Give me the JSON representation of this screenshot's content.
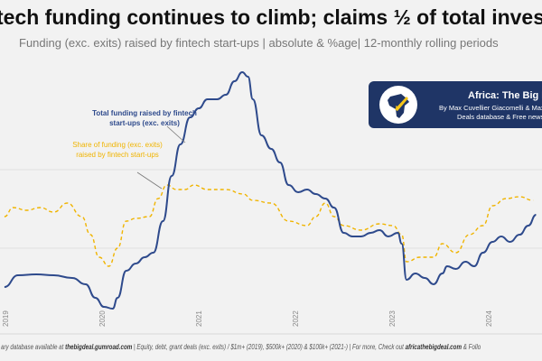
{
  "title": "tech funding continues to climb; claims ½ of total inves",
  "subtitle": "Funding (exc. exits) raised by fintech start-ups | absolute & %age| 12-monthly rolling periods",
  "brand": {
    "title": "Africa: The Big Dea",
    "byline": "By Max Cuvellier Giacomelli & Max",
    "tagline": "Deals database & Free news"
  },
  "footer": {
    "part1": "ary database available at ",
    "link1": "thebigdeal.gumroad.com",
    "part2": " | Equity, debt, grant deals (exc. exits) / $1m+ (2019), $500k+ (2020) & $100k+ (2021-) | For more, Check out ",
    "link2": "africathebigdeal.com",
    "part3": " & Follo"
  },
  "chart_data": {
    "type": "line",
    "title": "tech funding continues to climb; claims ½ of total inves",
    "xlabel": "",
    "ylabel": "",
    "x_ticks": [
      "2019",
      "2020",
      "2021",
      "2022",
      "2023",
      "2024"
    ],
    "grid": "faint horizontal",
    "colors": {
      "total": "#2e4a8c",
      "share": "#f0b400",
      "background": "#f2f2f2",
      "brand": "#1f3566"
    },
    "series": [
      {
        "name": "Total funding raised by fintech start-ups (exc. exits)",
        "style": "solid",
        "x": [
          2018.99,
          2019.13,
          2019.32,
          2019.5,
          2019.69,
          2019.83,
          2019.93,
          2020.02,
          2020.11,
          2020.16,
          2020.25,
          2020.35,
          2020.44,
          2020.53,
          2020.63,
          2020.72,
          2020.81,
          2020.91,
          2021.0,
          2021.09,
          2021.19,
          2021.28,
          2021.37,
          2021.45,
          2021.51,
          2021.56,
          2021.65,
          2021.75,
          2021.84,
          2021.93,
          2022.03,
          2022.12,
          2022.21,
          2022.31,
          2022.4,
          2022.5,
          2022.59,
          2022.68,
          2022.78,
          2022.87,
          2022.96,
          2023.06,
          2023.1,
          2023.15,
          2023.24,
          2023.34,
          2023.43,
          2023.52,
          2023.57,
          2023.66,
          2023.76,
          2023.85,
          2023.94,
          2024.04,
          2024.13,
          2024.22,
          2024.32,
          2024.41,
          2024.49
        ],
        "values": [
          32,
          45,
          46,
          45,
          42,
          35,
          20,
          10,
          8,
          20,
          50,
          58,
          65,
          70,
          105,
          155,
          190,
          220,
          230,
          240,
          240,
          245,
          260,
          270,
          265,
          240,
          200,
          185,
          170,
          145,
          137,
          140,
          135,
          130,
          120,
          92,
          88,
          88,
          92,
          95,
          88,
          92,
          80,
          40,
          47,
          42,
          35,
          47,
          55,
          52,
          60,
          55,
          70,
          82,
          88,
          82,
          90,
          100,
          112
        ]
      },
      {
        "name": "Share of funding (exc. exits) raised by fintech start-ups",
        "style": "dashed",
        "x": [
          2018.99,
          2019.08,
          2019.22,
          2019.36,
          2019.5,
          2019.64,
          2019.79,
          2019.88,
          2019.97,
          2020.07,
          2020.16,
          2020.25,
          2020.35,
          2020.49,
          2020.58,
          2020.67,
          2020.77,
          2020.86,
          2020.95,
          2021.09,
          2021.28,
          2021.46,
          2021.56,
          2021.75,
          2021.93,
          2022.12,
          2022.21,
          2022.31,
          2022.4,
          2022.5,
          2022.68,
          2022.87,
          2023.01,
          2023.1,
          2023.15,
          2023.29,
          2023.43,
          2023.52,
          2023.66,
          2023.8,
          2023.94,
          2024.04,
          2024.18,
          2024.32,
          2024.46
        ],
        "values": [
          110,
          120,
          117,
          120,
          115,
          125,
          110,
          90,
          65,
          55,
          75,
          105,
          108,
          110,
          130,
          145,
          140,
          140,
          145,
          140,
          140,
          135,
          128,
          125,
          105,
          100,
          110,
          125,
          110,
          100,
          95,
          102,
          100,
          90,
          60,
          65,
          65,
          80,
          70,
          90,
          100,
          122,
          130,
          132,
          128
        ]
      }
    ],
    "annotations": [
      "Total funding raised by fintech start-ups (exc. exits)",
      "Share of funding (exc. exits) raised by fintech start-ups"
    ]
  }
}
